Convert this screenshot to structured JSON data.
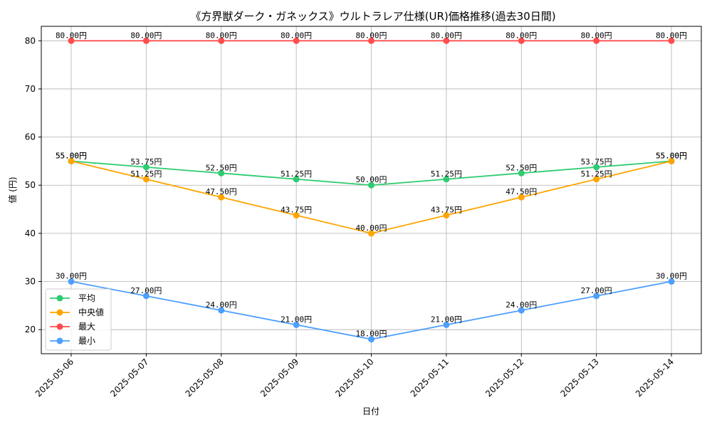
{
  "chart_data": {
    "type": "line",
    "title": "《方界獣ダーク・ガネックス》ウルトラレア仕様(UR)価格推移(過去30日間)",
    "xlabel": "日付",
    "ylabel": "値 (円)",
    "x": [
      "2025-05-06",
      "2025-05-07",
      "2025-05-08",
      "2025-05-09",
      "2025-05-10",
      "2025-05-11",
      "2025-05-12",
      "2025-05-13",
      "2025-05-14"
    ],
    "ylim": [
      15,
      83
    ],
    "yticks": [
      20,
      30,
      40,
      50,
      60,
      70,
      80
    ],
    "grid": true,
    "legend_position": "lower-left",
    "value_suffix": "円",
    "series": [
      {
        "name": "平均",
        "color": "#2ecc71",
        "values": [
          55.0,
          53.75,
          52.5,
          51.25,
          50.0,
          51.25,
          52.5,
          53.75,
          55.0
        ]
      },
      {
        "name": "中央値",
        "color": "#ffa500",
        "values": [
          55.0,
          51.25,
          47.5,
          43.75,
          40.0,
          43.75,
          47.5,
          51.25,
          55.0
        ]
      },
      {
        "name": "最大",
        "color": "#ff4d4d",
        "values": [
          80.0,
          80.0,
          80.0,
          80.0,
          80.0,
          80.0,
          80.0,
          80.0,
          80.0
        ]
      },
      {
        "name": "最小",
        "color": "#4d9fff",
        "values": [
          30.0,
          27.0,
          24.0,
          21.0,
          18.0,
          21.0,
          24.0,
          27.0,
          30.0
        ]
      }
    ]
  }
}
